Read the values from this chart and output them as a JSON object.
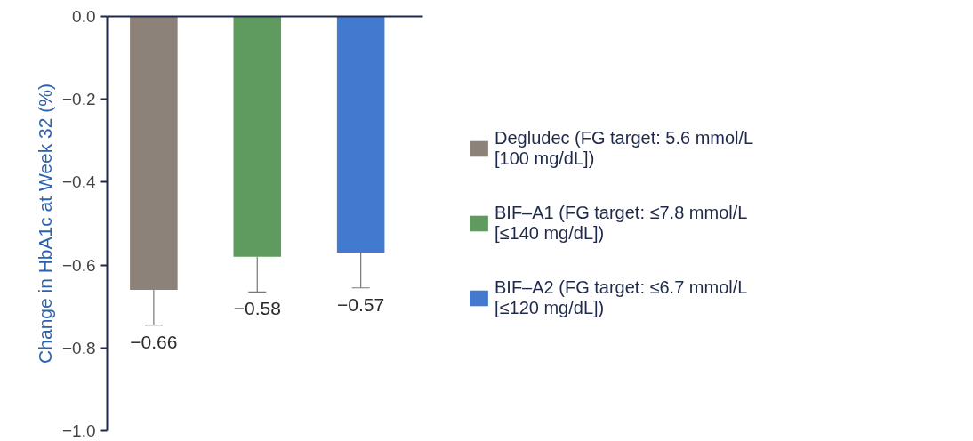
{
  "chart_data": {
    "type": "bar",
    "ylabel": "Change in HbA1c at Week 32 (%)",
    "categories": [
      null,
      null,
      null
    ],
    "series": [
      {
        "name": "Degludec (FG target: 5.6 mmol/L [100 mg/dL])",
        "color": "#8c8279",
        "values": [
          -0.66,
          null,
          null
        ],
        "errors": [
          [
            -0.745,
            -0.66
          ],
          null,
          null
        ],
        "value_labels": [
          "−0.66",
          null,
          null
        ]
      },
      {
        "name": "BIF–A1 (FG target: ≤7.8 mmol/L [≤140 mg/dL])",
        "color": "#5f9a5f",
        "values": [
          null,
          -0.58,
          null
        ],
        "errors": [
          null,
          [
            -0.665,
            -0.58
          ],
          null
        ],
        "value_labels": [
          null,
          "−0.58",
          null
        ]
      },
      {
        "name": "BIF–A2 (FG target: ≤6.7 mmol/L [≤120 mg/dL])",
        "color": "#4479d0",
        "values": [
          null,
          null,
          -0.57
        ],
        "errors": [
          null,
          null,
          [
            -0.655,
            -0.57
          ]
        ],
        "value_labels": [
          null,
          null,
          "−0.57"
        ]
      }
    ],
    "ylim": [
      -1.0,
      0.0
    ],
    "yticks": [
      {
        "value": -1.0,
        "label": "−1.0"
      },
      {
        "value": -0.8,
        "label": "−0.8"
      },
      {
        "value": -0.6,
        "label": "−0.6"
      },
      {
        "value": -0.4,
        "label": "−0.4"
      },
      {
        "value": -0.2,
        "label": "−0.2"
      },
      {
        "value": 0.0,
        "label": "0.0"
      }
    ],
    "tick_labels": "y",
    "grid": false,
    "legend": "right"
  }
}
